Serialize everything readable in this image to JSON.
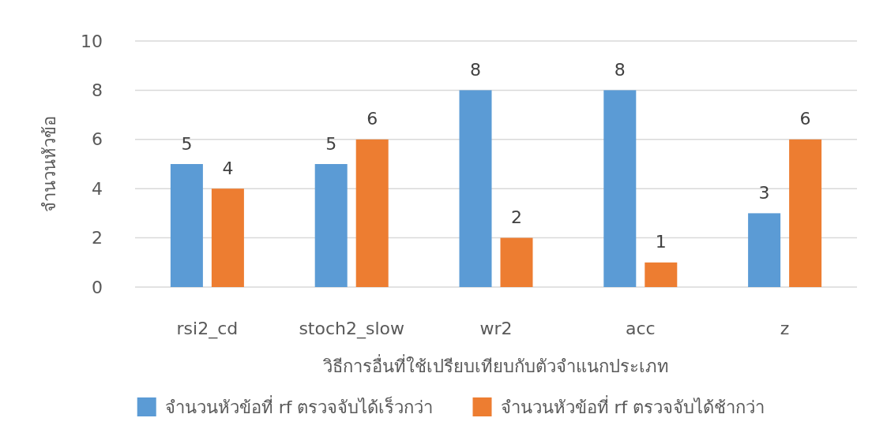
{
  "chart_data": {
    "type": "bar",
    "xlabel": "วิธีการอื่นที่ใช้เปรียบเทียบกับตัวจำแนกประเภท",
    "ylabel": "จำนวนหัวข้อ",
    "categories": [
      "rsi2_cd",
      "stoch2_slow",
      "wr2",
      "acc",
      "z"
    ],
    "series": [
      {
        "name": "จำนวนหัวข้อที่ rf ตรวจจับได้เร็วกว่า",
        "color": "#5b9bd5",
        "values": [
          5,
          5,
          8,
          8,
          3
        ]
      },
      {
        "name": "จำนวนหัวข้อที่ rf ตรวจจับได้ช้ากว่า",
        "color": "#ed7d31",
        "values": [
          4,
          6,
          2,
          1,
          6
        ]
      }
    ],
    "ylim": [
      0,
      10
    ],
    "yticks": [
      0,
      2,
      4,
      6,
      8,
      10
    ],
    "grid": "y",
    "legend": "bottom",
    "data_labels": true
  }
}
